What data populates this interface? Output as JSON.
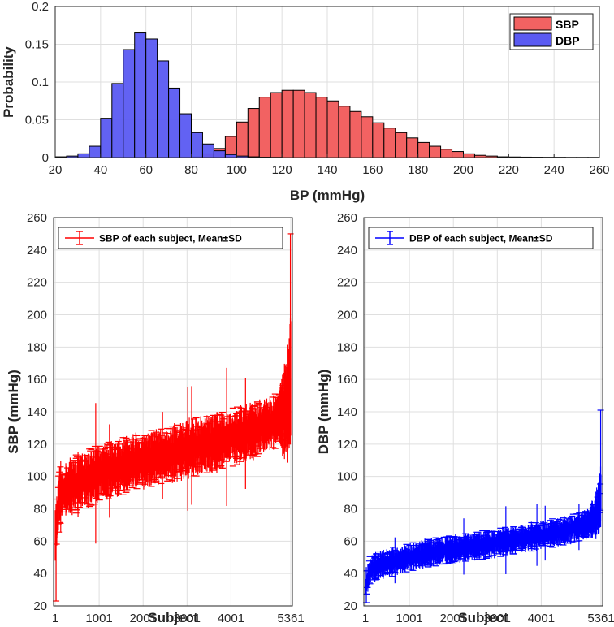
{
  "chart_data": [
    {
      "type": "bar",
      "subtype": "histogram",
      "title": "",
      "xlabel": "BP (mmHg)",
      "ylabel": "Probability",
      "xlim": [
        20,
        260
      ],
      "ylim": [
        0,
        0.2
      ],
      "xticks": [
        20,
        40,
        60,
        80,
        100,
        120,
        140,
        160,
        180,
        200,
        220,
        240,
        260
      ],
      "yticks": [
        0,
        0.05,
        0.1,
        0.15,
        0.2
      ],
      "ytick_labels": [
        "0",
        "0.05",
        "0.1",
        "0.15",
        "0.2"
      ],
      "grid": true,
      "legend": "top-right",
      "bin_width": 5,
      "bin_start": 20,
      "series": [
        {
          "name": "SBP",
          "color": "#f26262",
          "values": [
            0,
            0,
            0,
            0,
            0,
            0,
            0,
            0,
            0,
            0,
            0,
            0,
            0.001,
            0.005,
            0.012,
            0.028,
            0.047,
            0.065,
            0.08,
            0.086,
            0.089,
            0.089,
            0.086,
            0.08,
            0.075,
            0.068,
            0.061,
            0.054,
            0.046,
            0.039,
            0.033,
            0.026,
            0.02,
            0.015,
            0.011,
            0.008,
            0.005,
            0.003,
            0.002,
            0.001,
            0.0008,
            0.0006,
            0.0005,
            0.0004,
            0.0004,
            0.0003,
            0.0003,
            0.0003
          ]
        },
        {
          "name": "DBP",
          "color": "#5a5af2",
          "values": [
            0.001,
            0.002,
            0.005,
            0.015,
            0.052,
            0.098,
            0.143,
            0.165,
            0.157,
            0.128,
            0.092,
            0.058,
            0.033,
            0.018,
            0.009,
            0.004,
            0.002,
            0.001,
            0.0005,
            0.0003,
            0,
            0,
            0,
            0,
            0,
            0,
            0,
            0,
            0,
            0,
            0,
            0,
            0,
            0,
            0,
            0,
            0,
            0,
            0,
            0,
            0,
            0,
            0,
            0,
            0,
            0,
            0,
            0
          ]
        }
      ]
    },
    {
      "type": "scatter",
      "subtype": "errorbar",
      "xlabel": "Subject",
      "ylabel": "SBP (mmHg)",
      "xlim": [
        1,
        5361
      ],
      "ylim": [
        20,
        260
      ],
      "xticks": [
        1,
        1001,
        2001,
        3001,
        4001,
        5361
      ],
      "yticks": [
        20,
        40,
        60,
        80,
        100,
        120,
        140,
        160,
        180,
        200,
        220,
        240,
        260
      ],
      "grid": true,
      "legend": "top-left",
      "color": "#ff0000",
      "series": [
        {
          "name": "SBP of each subject, Mean±SD",
          "mean_x": [
            1,
            100,
            300,
            600,
            1001,
            1500,
            2001,
            2500,
            3001,
            3500,
            4001,
            4500,
            5000,
            5200,
            5300,
            5361
          ],
          "mean_y": [
            65,
            88,
            93,
            97,
            102,
            106,
            110,
            113,
            117,
            120,
            124,
            128,
            134,
            140,
            146,
            160
          ],
          "sd_typical": 12,
          "extremes": {
            "min": 23,
            "max": 250
          }
        }
      ]
    },
    {
      "type": "scatter",
      "subtype": "errorbar",
      "xlabel": "Subject",
      "ylabel": "DBP (mmHg)",
      "xlim": [
        1,
        5361
      ],
      "ylim": [
        20,
        260
      ],
      "xticks": [
        1,
        1001,
        2001,
        3001,
        4001,
        5361
      ],
      "yticks": [
        20,
        40,
        60,
        80,
        100,
        120,
        140,
        160,
        180,
        200,
        220,
        240,
        260
      ],
      "grid": true,
      "legend": "top-left",
      "color": "#0000ff",
      "series": [
        {
          "name": "DBP of each subject, Mean±SD",
          "mean_x": [
            1,
            100,
            300,
            600,
            1001,
            1500,
            2001,
            2500,
            3001,
            3500,
            4001,
            4500,
            5000,
            5200,
            5300,
            5361
          ],
          "mean_y": [
            32,
            42,
            45,
            47,
            50,
            53,
            55,
            57,
            59,
            61,
            64,
            66,
            70,
            74,
            80,
            90
          ],
          "sd_typical": 6,
          "extremes": {
            "min": 22,
            "max": 141
          }
        }
      ]
    }
  ]
}
